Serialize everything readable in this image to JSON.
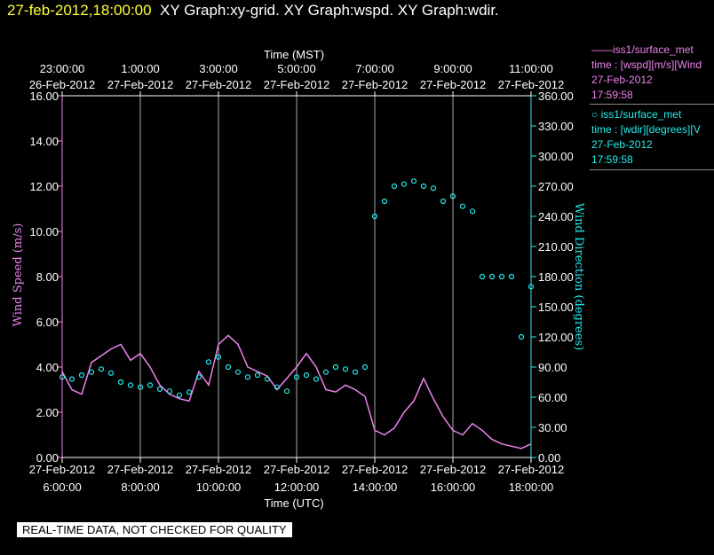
{
  "header": {
    "timestamp": "27-feb-2012,18:00:00",
    "graph_title": "XY Graph:xy-grid.  XY Graph:wspd.  XY Graph:wdir."
  },
  "legend": [
    {
      "line1": "iss1/surface_met",
      "line2": "time : [wspd][m/s][Wind",
      "line3": "27-Feb-2012",
      "line4": "17:59:58",
      "color": "#ee82ee"
    },
    {
      "line1": "iss1/surface_met",
      "line2": "time : [wdir][degrees][V",
      "line3": "27-Feb-2012",
      "line4": "17:59:58",
      "color": "#22eeee"
    }
  ],
  "footer": "REAL-TIME DATA, NOT CHECKED FOR QUALITY",
  "chart_data": {
    "type": "line",
    "top_axis_label": "Time (MST)",
    "top_ticks": [
      {
        "time": "23:00:00",
        "date": "26-Feb-2012"
      },
      {
        "time": "1:00:00",
        "date": "27-Feb-2012"
      },
      {
        "time": "3:00:00",
        "date": "27-Feb-2012"
      },
      {
        "time": "5:00:00",
        "date": "27-Feb-2012"
      },
      {
        "time": "7:00:00",
        "date": "27-Feb-2012"
      },
      {
        "time": "9:00:00",
        "date": "27-Feb-2012"
      },
      {
        "time": "11:00:00",
        "date": "27-Feb-2012"
      }
    ],
    "xlabel": "Time (UTC)",
    "x_ticks": [
      {
        "date": "27-Feb-2012",
        "time": "6:00:00"
      },
      {
        "date": "27-Feb-2012",
        "time": "8:00:00"
      },
      {
        "date": "27-Feb-2012",
        "time": "10:00:00"
      },
      {
        "date": "27-Feb-2012",
        "time": "12:00:00"
      },
      {
        "date": "27-Feb-2012",
        "time": "14:00:00"
      },
      {
        "date": "27-Feb-2012",
        "time": "16:00:00"
      },
      {
        "date": "27-Feb-2012",
        "time": "18:00:00"
      }
    ],
    "xlim_utc_hours": [
      6,
      18
    ],
    "ylabel_left": "Wind Speed (m/s)",
    "ylim_left": [
      0,
      16
    ],
    "yticks_left": [
      "0.00",
      "2.00",
      "4.00",
      "6.00",
      "8.00",
      "10.00",
      "12.00",
      "14.00",
      "16.00"
    ],
    "ylabel_right": "Wind Direction (degrees)",
    "ylim_right": [
      0,
      360
    ],
    "yticks_right": [
      "0.00",
      "30.00",
      "60.00",
      "90.00",
      "120.00",
      "150.00",
      "180.00",
      "210.00",
      "240.00",
      "270.00",
      "300.00",
      "330.00",
      "360.00"
    ],
    "grid": "vertical",
    "series": [
      {
        "name": "iss1/surface_met time : [wspd][m/s]",
        "axis": "left",
        "color": "#ee82ee",
        "style": "line",
        "x": [
          6.0,
          6.25,
          6.5,
          6.75,
          7.0,
          7.25,
          7.5,
          7.75,
          8.0,
          8.25,
          8.5,
          8.75,
          9.0,
          9.25,
          9.5,
          9.75,
          10.0,
          10.25,
          10.5,
          10.75,
          11.0,
          11.25,
          11.5,
          11.75,
          12.0,
          12.25,
          12.5,
          12.75,
          13.0,
          13.25,
          13.5,
          13.75,
          14.0,
          14.25,
          14.5,
          14.75,
          15.0,
          15.25,
          15.5,
          15.75,
          16.0,
          16.25,
          16.5,
          16.75,
          17.0,
          17.25,
          17.5,
          17.75,
          18.0
        ],
        "y": [
          3.8,
          3.0,
          2.8,
          4.2,
          4.5,
          4.8,
          5.0,
          4.3,
          4.6,
          4.0,
          3.2,
          2.8,
          2.6,
          2.5,
          3.8,
          3.2,
          5.0,
          5.4,
          5.0,
          4.0,
          3.8,
          3.6,
          3.0,
          3.5,
          4.0,
          4.6,
          4.0,
          3.0,
          2.9,
          3.2,
          3.0,
          2.7,
          1.2,
          1.0,
          1.3,
          2.0,
          2.5,
          3.5,
          2.6,
          1.8,
          1.2,
          1.0,
          1.5,
          1.2,
          0.8,
          0.6,
          0.5,
          0.4,
          0.6
        ]
      },
      {
        "name": "iss1/surface_met time : [wdir][degrees]",
        "axis": "right",
        "color": "#22eeee",
        "style": "points",
        "x": [
          6.0,
          6.25,
          6.5,
          6.75,
          7.0,
          7.25,
          7.5,
          7.75,
          8.0,
          8.25,
          8.5,
          8.75,
          9.0,
          9.25,
          9.5,
          9.75,
          10.0,
          10.25,
          10.5,
          10.75,
          11.0,
          11.25,
          11.5,
          11.75,
          12.0,
          12.25,
          12.5,
          12.75,
          13.0,
          13.25,
          13.5,
          13.75,
          14.0,
          14.25,
          14.5,
          14.75,
          15.0,
          15.25,
          15.5,
          15.75,
          16.0,
          16.25,
          16.5,
          16.75,
          17.0,
          17.25,
          17.5,
          17.75,
          18.0
        ],
        "y": [
          80,
          78,
          82,
          85,
          88,
          84,
          75,
          72,
          70,
          72,
          68,
          66,
          62,
          65,
          80,
          95,
          100,
          90,
          85,
          80,
          82,
          78,
          70,
          66,
          80,
          82,
          78,
          85,
          90,
          88,
          85,
          90,
          240,
          255,
          270,
          272,
          275,
          270,
          268,
          255,
          260,
          250,
          245,
          180,
          180,
          180,
          180,
          120,
          170
        ]
      }
    ]
  }
}
